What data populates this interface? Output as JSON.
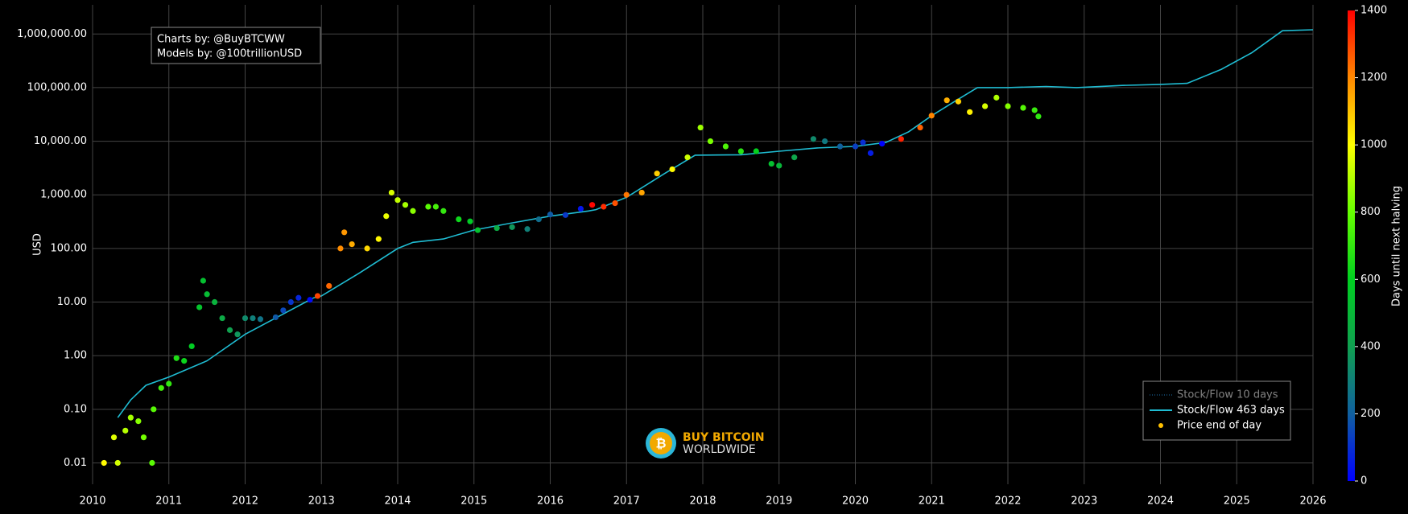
{
  "chart_data": {
    "type": "scatter",
    "y_label": "USD",
    "log_y": true,
    "grid": true,
    "legend_position": "lower right",
    "xlim": [
      2010,
      2026
    ],
    "xticks": [
      2010,
      2011,
      2012,
      2013,
      2014,
      2015,
      2016,
      2017,
      2018,
      2019,
      2020,
      2021,
      2022,
      2023,
      2024,
      2025,
      2026
    ],
    "ylim": [
      0.004,
      3500000
    ],
    "yticks": [
      {
        "value": 0.01,
        "label": "0.01"
      },
      {
        "value": 0.1,
        "label": "0.10"
      },
      {
        "value": 1,
        "label": "1.00"
      },
      {
        "value": 10,
        "label": "10.00"
      },
      {
        "value": 100,
        "label": "100.00"
      },
      {
        "value": 1000,
        "label": "1,000.00"
      },
      {
        "value": 10000,
        "label": "10,000.00"
      },
      {
        "value": 100000,
        "label": "100,000.00"
      },
      {
        "value": 1000000,
        "label": "1,000,000.00"
      }
    ],
    "annotations": [
      "Charts by: @BuyBTCWW",
      "Models by: @100trillionUSD"
    ],
    "logo": [
      "BUY BITCOIN",
      "WORLDWIDE"
    ],
    "colorbar": {
      "title": "Days until next halving",
      "lim": [
        0,
        1400
      ],
      "ticks": [
        0,
        200,
        400,
        600,
        800,
        1000,
        1200,
        1400
      ],
      "colors": [
        "#0000ff",
        "#1060a0",
        "#10a050",
        "#00d020",
        "#66ff00",
        "#ffff00",
        "#ff8800",
        "#ff0000"
      ]
    },
    "series": [
      {
        "name": "Stock/Flow 10 days",
        "type": "line",
        "color": "#1f77b4",
        "visible": false
      },
      {
        "name": "Stock/Flow 463 days",
        "type": "line",
        "color": "#1fbcd2",
        "x": [
          2010.33,
          2010.5,
          2010.7,
          2011.0,
          2011.5,
          2012.0,
          2012.5,
          2012.9,
          2013.0,
          2013.5,
          2014.0,
          2014.2,
          2014.6,
          2015.0,
          2015.5,
          2016.0,
          2016.5,
          2016.6,
          2017.0,
          2017.5,
          2017.9,
          2018.5,
          2019.0,
          2019.5,
          2020.0,
          2020.4,
          2020.7,
          2021.0,
          2021.3,
          2021.6,
          2022.0,
          2022.5,
          2022.9,
          2023.5,
          2024.0,
          2024.35,
          2024.8,
          2025.2,
          2025.6,
          2026.0
        ],
        "values": [
          0.07,
          0.15,
          0.28,
          0.4,
          0.8,
          2.5,
          6,
          12,
          13,
          35,
          100,
          130,
          150,
          220,
          300,
          400,
          500,
          530,
          900,
          2500,
          5500,
          5600,
          6500,
          7500,
          8000,
          9500,
          15000,
          30000,
          55000,
          100000,
          100000,
          105000,
          100000,
          110000,
          115000,
          120000,
          220000,
          450000,
          1150000,
          1200000
        ]
      },
      {
        "name": "Price end of day",
        "type": "scatter",
        "color": "#ffc000",
        "x": [
          2010.15,
          2010.28,
          2010.33,
          2010.43,
          2010.5,
          2010.6,
          2010.67,
          2010.78,
          2010.8,
          2010.9,
          2011.0,
          2011.1,
          2011.2,
          2011.3,
          2011.4,
          2011.45,
          2011.5,
          2011.6,
          2011.7,
          2011.8,
          2011.9,
          2012.0,
          2012.1,
          2012.2,
          2012.4,
          2012.5,
          2012.6,
          2012.7,
          2012.85,
          2012.95,
          2013.1,
          2013.25,
          2013.3,
          2013.4,
          2013.6,
          2013.75,
          2013.85,
          2013.92,
          2014.0,
          2014.1,
          2014.2,
          2014.4,
          2014.5,
          2014.6,
          2014.8,
          2014.95,
          2015.05,
          2015.3,
          2015.5,
          2015.7,
          2015.85,
          2016.0,
          2016.2,
          2016.4,
          2016.55,
          2016.7,
          2016.85,
          2017.0,
          2017.2,
          2017.4,
          2017.6,
          2017.8,
          2017.97,
          2018.1,
          2018.3,
          2018.5,
          2018.7,
          2018.9,
          2019.0,
          2019.2,
          2019.45,
          2019.6,
          2019.8,
          2020.0,
          2020.1,
          2020.2,
          2020.35,
          2020.6,
          2020.85,
          2021.0,
          2021.2,
          2021.35,
          2021.5,
          2021.7,
          2021.85,
          2022.0,
          2022.2,
          2022.35,
          2022.4
        ],
        "values": [
          0.01,
          0.03,
          0.01,
          0.04,
          0.07,
          0.06,
          0.03,
          0.01,
          0.1,
          0.25,
          0.3,
          0.9,
          0.8,
          1.5,
          8,
          25,
          14,
          10,
          5,
          3,
          2.5,
          5,
          5,
          4.8,
          5.2,
          7,
          10,
          12,
          11,
          13,
          20,
          100,
          200,
          120,
          100,
          150,
          400,
          1100,
          800,
          650,
          500,
          600,
          600,
          500,
          350,
          320,
          220,
          240,
          250,
          230,
          350,
          430,
          420,
          550,
          650,
          600,
          700,
          1000,
          1100,
          2500,
          3000,
          5000,
          18000,
          10000,
          8000,
          6500,
          6500,
          3800,
          3500,
          5000,
          11000,
          10000,
          8000,
          8000,
          9500,
          6000,
          9000,
          11000,
          18000,
          30000,
          58000,
          55000,
          35000,
          45000,
          65000,
          45000,
          42000,
          38000,
          29000
        ],
        "color_values": [
          1007,
          960,
          942,
          905,
          880,
          843,
          818,
          777,
          770,
          734,
          697,
          661,
          624,
          588,
          551,
          533,
          515,
          478,
          442,
          405,
          369,
          332,
          296,
          259,
          186,
          150,
          113,
          77,
          22,
          1303,
          1248,
          1194,
          1175,
          1139,
          1066,
          1011,
          975,
          949,
          920,
          883,
          847,
          774,
          737,
          701,
          628,
          573,
          537,
          445,
          372,
          299,
          245,
          190,
          117,
          44,
          1391,
          1336,
          1281,
          1226,
          1153,
          1080,
          1007,
          934,
          872,
          825,
          752,
          679,
          606,
          533,
          496,
          423,
          332,
          277,
          204,
          131,
          95,
          58,
          4,
          1351,
          1259,
          1205,
          1132,
          1077,
          1022,
          949,
          894,
          840,
          767,
          712,
          694
        ]
      }
    ]
  }
}
